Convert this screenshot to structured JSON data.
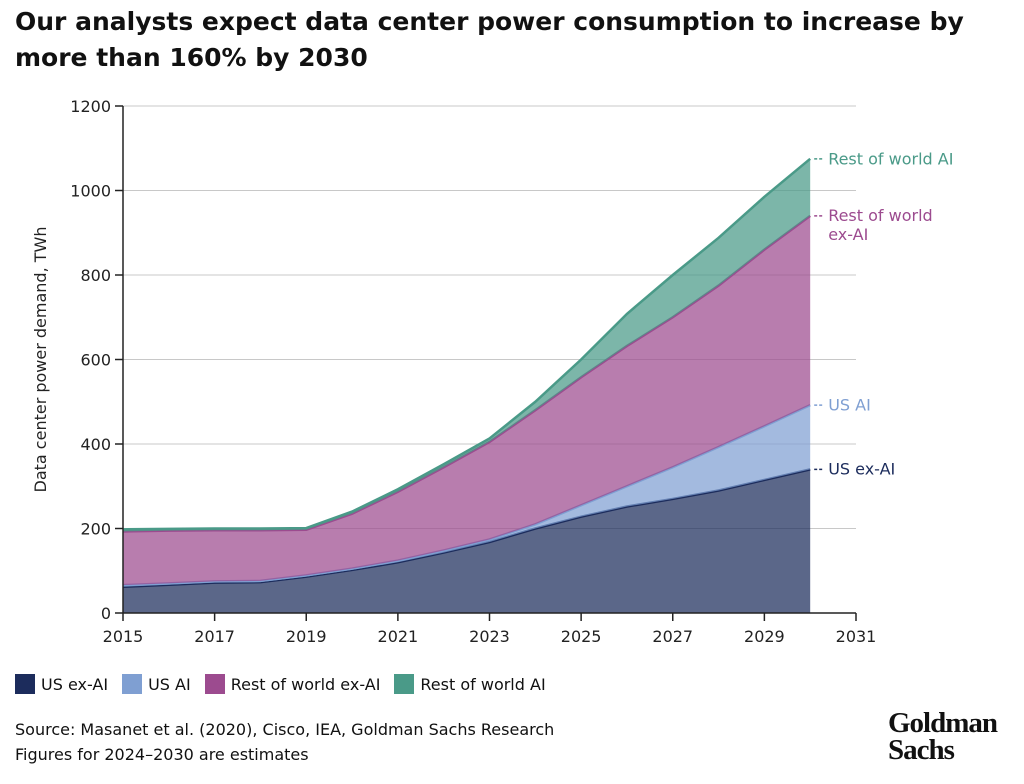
{
  "chart_data": {
    "type": "stacked-area",
    "title": "Our analysts expect data center power consumption to increase by more than 160% by 2030",
    "y_label": "Data center power demand, TWh",
    "x": [
      2015,
      2016,
      2017,
      2018,
      2019,
      2020,
      2021,
      2022,
      2023,
      2024,
      2025,
      2026,
      2027,
      2028,
      2029,
      2030
    ],
    "series": [
      {
        "name": "US ex-AI",
        "color": "#1c2c5c",
        "values": [
          62,
          67,
          72,
          73,
          86,
          102,
          120,
          143,
          168,
          200,
          228,
          252,
          270,
          290,
          315,
          340
        ]
      },
      {
        "name": "US AI",
        "color": "#7f9fd2",
        "values": [
          4,
          3,
          3,
          3,
          3,
          3,
          4,
          5,
          6,
          10,
          27,
          48,
          75,
          103,
          127,
          152
        ]
      },
      {
        "name": "Rest of world ex-AI",
        "color": "#9c4b8f",
        "values": [
          127,
          125,
          121,
          120,
          108,
          130,
          163,
          197,
          231,
          270,
          303,
          332,
          355,
          382,
          418,
          448
        ]
      },
      {
        "name": "Rest of world AI",
        "color": "#4a9a88",
        "values": [
          5,
          4,
          4,
          4,
          4,
          5,
          6,
          7,
          8,
          20,
          42,
          76,
          100,
          113,
          125,
          135
        ]
      }
    ],
    "xlim": [
      2015,
      2031
    ],
    "xticks": [
      2015,
      2017,
      2019,
      2021,
      2023,
      2025,
      2027,
      2029,
      2031
    ],
    "ylim": [
      0,
      1200
    ],
    "yticks": [
      0,
      200,
      400,
      600,
      800,
      1000,
      1200
    ],
    "grid": true
  },
  "footer": {
    "source": "Source: Masanet et al. (2020), Cisco, IEA, Goldman Sachs Research",
    "note": "Figures for 2024–2030 are estimates",
    "logo": [
      "Goldman",
      "Sachs"
    ]
  }
}
